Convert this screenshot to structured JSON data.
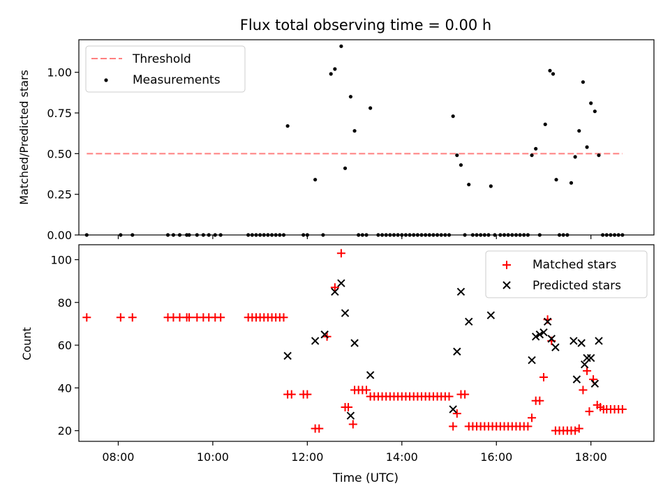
{
  "chart_data": [
    {
      "type": "scatter",
      "title": "Flux total observing time = 0.00 h",
      "xlabel": "",
      "ylabel": "Matched/Predicted stars",
      "xlim": [
        "07:10",
        "19:20"
      ],
      "ylim": [
        0,
        1.2
      ],
      "yticks": [
        0.0,
        0.25,
        0.5,
        0.75,
        1.0
      ],
      "ytick_labels": [
        "0.00",
        "0.25",
        "0.50",
        "0.75",
        "1.00"
      ],
      "grid": false,
      "legend_position": "top-left",
      "threshold": {
        "name": "Threshold",
        "value": 0.5,
        "x_start": "07:20",
        "x_end": "18:40",
        "color": "#ff7f7f",
        "style": "dashed"
      },
      "series": [
        {
          "name": "Measurements",
          "color": "#000000",
          "marker": "dot",
          "points": [
            [
              "07:20",
              0
            ],
            [
              "08:03",
              0
            ],
            [
              "08:18",
              0
            ],
            [
              "09:03",
              0
            ],
            [
              "09:10",
              0
            ],
            [
              "09:18",
              0
            ],
            [
              "09:27",
              0
            ],
            [
              "09:30",
              0
            ],
            [
              "09:40",
              0
            ],
            [
              "09:48",
              0
            ],
            [
              "09:55",
              0
            ],
            [
              "10:03",
              0
            ],
            [
              "10:10",
              0
            ],
            [
              "10:45",
              0
            ],
            [
              "10:50",
              0
            ],
            [
              "10:55",
              0
            ],
            [
              "11:00",
              0
            ],
            [
              "11:05",
              0
            ],
            [
              "11:10",
              0
            ],
            [
              "11:15",
              0
            ],
            [
              "11:20",
              0
            ],
            [
              "11:25",
              0
            ],
            [
              "11:30",
              0
            ],
            [
              "11:35",
              0.67
            ],
            [
              "11:55",
              0
            ],
            [
              "12:00",
              0
            ],
            [
              "12:10",
              0.34
            ],
            [
              "12:20",
              0
            ],
            [
              "12:30",
              0.99
            ],
            [
              "12:35",
              1.02
            ],
            [
              "12:43",
              1.16
            ],
            [
              "12:48",
              0.41
            ],
            [
              "12:55",
              0.85
            ],
            [
              "13:00",
              0.64
            ],
            [
              "13:05",
              0
            ],
            [
              "13:10",
              0
            ],
            [
              "13:15",
              0
            ],
            [
              "13:20",
              0.78
            ],
            [
              "13:30",
              0
            ],
            [
              "13:35",
              0
            ],
            [
              "13:40",
              0
            ],
            [
              "13:45",
              0
            ],
            [
              "13:50",
              0
            ],
            [
              "13:55",
              0
            ],
            [
              "14:00",
              0
            ],
            [
              "14:05",
              0
            ],
            [
              "14:10",
              0
            ],
            [
              "14:15",
              0
            ],
            [
              "14:20",
              0
            ],
            [
              "14:25",
              0
            ],
            [
              "14:30",
              0
            ],
            [
              "14:35",
              0
            ],
            [
              "14:40",
              0
            ],
            [
              "14:45",
              0
            ],
            [
              "14:50",
              0
            ],
            [
              "14:55",
              0
            ],
            [
              "15:00",
              0
            ],
            [
              "15:05",
              0.73
            ],
            [
              "15:10",
              0.49
            ],
            [
              "15:15",
              0.43
            ],
            [
              "15:20",
              0
            ],
            [
              "15:25",
              0.31
            ],
            [
              "15:30",
              0
            ],
            [
              "15:35",
              0
            ],
            [
              "15:40",
              0
            ],
            [
              "15:45",
              0
            ],
            [
              "15:50",
              0
            ],
            [
              "15:53",
              0.3
            ],
            [
              "15:58",
              0
            ],
            [
              "16:05",
              0
            ],
            [
              "16:10",
              0
            ],
            [
              "16:15",
              0
            ],
            [
              "16:20",
              0
            ],
            [
              "16:25",
              0
            ],
            [
              "16:30",
              0
            ],
            [
              "16:35",
              0
            ],
            [
              "16:40",
              0
            ],
            [
              "16:45",
              0.49
            ],
            [
              "16:50",
              0.53
            ],
            [
              "16:55",
              0
            ],
            [
              "17:02",
              0.68
            ],
            [
              "17:08",
              1.01
            ],
            [
              "17:12",
              0.99
            ],
            [
              "17:16",
              0.34
            ],
            [
              "17:20",
              0
            ],
            [
              "17:25",
              0
            ],
            [
              "17:30",
              0
            ],
            [
              "17:35",
              0.32
            ],
            [
              "17:40",
              0.48
            ],
            [
              "17:45",
              0.64
            ],
            [
              "17:50",
              0.94
            ],
            [
              "17:55",
              0.54
            ],
            [
              "18:00",
              0.81
            ],
            [
              "18:05",
              0.76
            ],
            [
              "18:10",
              0.49
            ],
            [
              "18:15",
              0
            ],
            [
              "18:20",
              0
            ],
            [
              "18:25",
              0
            ],
            [
              "18:30",
              0
            ],
            [
              "18:35",
              0
            ],
            [
              "18:40",
              0
            ]
          ]
        }
      ]
    },
    {
      "type": "scatter",
      "title": "",
      "xlabel": "Time (UTC)",
      "ylabel": "Count",
      "xlim": [
        "07:10",
        "19:20"
      ],
      "ylim": [
        15,
        107
      ],
      "xticks": [
        "08:00",
        "10:00",
        "12:00",
        "14:00",
        "16:00",
        "18:00"
      ],
      "yticks": [
        20,
        40,
        60,
        80,
        100
      ],
      "grid": false,
      "legend_position": "top-right",
      "series": [
        {
          "name": "Matched stars",
          "color": "#ff0000",
          "marker": "plus",
          "points": [
            [
              "07:20",
              73
            ],
            [
              "08:03",
              73
            ],
            [
              "08:18",
              73
            ],
            [
              "09:03",
              73
            ],
            [
              "09:10",
              73
            ],
            [
              "09:18",
              73
            ],
            [
              "09:27",
              73
            ],
            [
              "09:30",
              73
            ],
            [
              "09:40",
              73
            ],
            [
              "09:48",
              73
            ],
            [
              "09:55",
              73
            ],
            [
              "10:03",
              73
            ],
            [
              "10:10",
              73
            ],
            [
              "10:45",
              73
            ],
            [
              "10:50",
              73
            ],
            [
              "10:55",
              73
            ],
            [
              "11:00",
              73
            ],
            [
              "11:05",
              73
            ],
            [
              "11:10",
              73
            ],
            [
              "11:15",
              73
            ],
            [
              "11:20",
              73
            ],
            [
              "11:25",
              73
            ],
            [
              "11:30",
              73
            ],
            [
              "11:35",
              37
            ],
            [
              "11:40",
              37
            ],
            [
              "11:55",
              37
            ],
            [
              "12:00",
              37
            ],
            [
              "12:10",
              21
            ],
            [
              "12:15",
              21
            ],
            [
              "12:25",
              64
            ],
            [
              "12:35",
              87
            ],
            [
              "12:43",
              103
            ],
            [
              "12:48",
              31
            ],
            [
              "12:52",
              31
            ],
            [
              "12:58",
              23
            ],
            [
              "13:00",
              39
            ],
            [
              "13:05",
              39
            ],
            [
              "13:10",
              39
            ],
            [
              "13:15",
              39
            ],
            [
              "13:20",
              36
            ],
            [
              "13:25",
              36
            ],
            [
              "13:30",
              36
            ],
            [
              "13:35",
              36
            ],
            [
              "13:40",
              36
            ],
            [
              "13:45",
              36
            ],
            [
              "13:50",
              36
            ],
            [
              "13:55",
              36
            ],
            [
              "14:00",
              36
            ],
            [
              "14:05",
              36
            ],
            [
              "14:10",
              36
            ],
            [
              "14:15",
              36
            ],
            [
              "14:20",
              36
            ],
            [
              "14:25",
              36
            ],
            [
              "14:30",
              36
            ],
            [
              "14:35",
              36
            ],
            [
              "14:40",
              36
            ],
            [
              "14:45",
              36
            ],
            [
              "14:50",
              36
            ],
            [
              "14:55",
              36
            ],
            [
              "15:00",
              36
            ],
            [
              "15:05",
              22
            ],
            [
              "15:10",
              28
            ],
            [
              "15:15",
              37
            ],
            [
              "15:20",
              37
            ],
            [
              "15:25",
              22
            ],
            [
              "15:30",
              22
            ],
            [
              "15:35",
              22
            ],
            [
              "15:40",
              22
            ],
            [
              "15:45",
              22
            ],
            [
              "15:50",
              22
            ],
            [
              "15:55",
              22
            ],
            [
              "16:00",
              22
            ],
            [
              "16:05",
              22
            ],
            [
              "16:10",
              22
            ],
            [
              "16:15",
              22
            ],
            [
              "16:20",
              22
            ],
            [
              "16:25",
              22
            ],
            [
              "16:30",
              22
            ],
            [
              "16:35",
              22
            ],
            [
              "16:40",
              22
            ],
            [
              "16:45",
              26
            ],
            [
              "16:50",
              34
            ],
            [
              "16:55",
              34
            ],
            [
              "17:00",
              45
            ],
            [
              "17:05",
              72
            ],
            [
              "17:10",
              62
            ],
            [
              "17:15",
              20
            ],
            [
              "17:20",
              20
            ],
            [
              "17:25",
              20
            ],
            [
              "17:30",
              20
            ],
            [
              "17:35",
              20
            ],
            [
              "17:40",
              20
            ],
            [
              "17:45",
              21
            ],
            [
              "17:50",
              39
            ],
            [
              "17:55",
              48
            ],
            [
              "17:58",
              29
            ],
            [
              "18:03",
              44
            ],
            [
              "18:08",
              32
            ],
            [
              "18:12",
              31
            ],
            [
              "18:16",
              30
            ],
            [
              "18:20",
              30
            ],
            [
              "18:25",
              30
            ],
            [
              "18:30",
              30
            ],
            [
              "18:35",
              30
            ],
            [
              "18:40",
              30
            ]
          ]
        },
        {
          "name": "Predicted stars",
          "color": "#000000",
          "marker": "x",
          "points": [
            [
              "11:35",
              55
            ],
            [
              "12:10",
              62
            ],
            [
              "12:22",
              65
            ],
            [
              "12:35",
              85
            ],
            [
              "12:43",
              89
            ],
            [
              "12:48",
              75
            ],
            [
              "12:55",
              27
            ],
            [
              "13:00",
              61
            ],
            [
              "13:20",
              46
            ],
            [
              "15:05",
              30
            ],
            [
              "15:10",
              57
            ],
            [
              "15:15",
              85
            ],
            [
              "15:25",
              71
            ],
            [
              "15:53",
              74
            ],
            [
              "16:45",
              53
            ],
            [
              "16:50",
              64
            ],
            [
              "16:55",
              65
            ],
            [
              "17:00",
              66
            ],
            [
              "17:05",
              71
            ],
            [
              "17:10",
              63
            ],
            [
              "17:15",
              59
            ],
            [
              "17:38",
              62
            ],
            [
              "17:42",
              44
            ],
            [
              "17:48",
              61
            ],
            [
              "17:52",
              51
            ],
            [
              "17:55",
              54
            ],
            [
              "18:00",
              54
            ],
            [
              "18:05",
              42
            ],
            [
              "18:10",
              62
            ]
          ]
        }
      ]
    }
  ]
}
